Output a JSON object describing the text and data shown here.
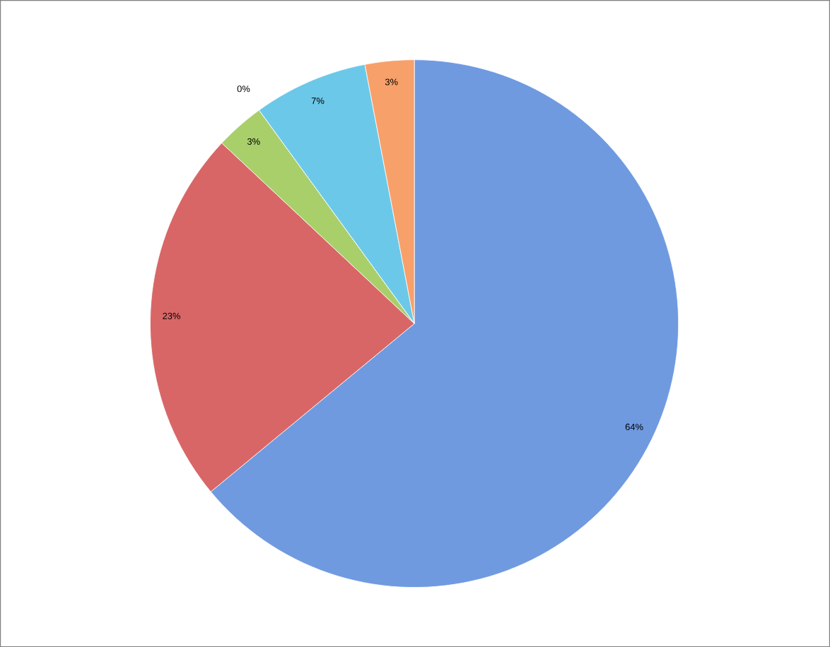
{
  "chart_data": {
    "type": "pie",
    "categories": [
      null,
      null,
      null,
      null,
      null,
      null
    ],
    "values": [
      64,
      23,
      3,
      0,
      7,
      3
    ],
    "colors": [
      "#6f9ae0",
      "#d96666",
      "#a9cf6a",
      "#8064a2",
      "#6cc8e8",
      "#f7a06a"
    ],
    "data_labels": true,
    "value_labels": [
      "64%",
      "23%",
      "3%",
      "0%",
      "7%",
      "3%"
    ]
  }
}
